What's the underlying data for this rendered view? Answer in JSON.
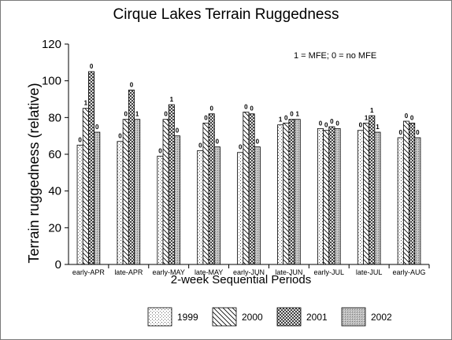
{
  "chart_data": {
    "type": "bar",
    "title": "Cirque Lakes Terrain Ruggedness",
    "xlabel": "2-week Sequential Periods",
    "ylabel": "Terrain ruggedness (relative)",
    "annotation": "1 = MFE; 0 = no MFE",
    "ylim": [
      0,
      120
    ],
    "yticks": [
      "0",
      "20",
      "40",
      "60",
      "80",
      "100",
      "120"
    ],
    "grid": false,
    "legend_position": "bottom",
    "categories": [
      "early-APR",
      "late-APR",
      "early-MAY",
      "late-MAY",
      "early-JUN",
      "late-JUN",
      "early-JUL",
      "late-JUL",
      "early-AUG"
    ],
    "series": [
      {
        "name": "1999",
        "pattern": "dots",
        "values": [
          65,
          67,
          59,
          62,
          61,
          76,
          74,
          73,
          69
        ],
        "labels": [
          "0",
          "0",
          "0",
          "0",
          "0",
          "1",
          "0",
          "0",
          "0"
        ]
      },
      {
        "name": "2000",
        "pattern": "hatch",
        "values": [
          85,
          79,
          79,
          77,
          83,
          77,
          73,
          77,
          78
        ],
        "labels": [
          "1",
          "0",
          "0",
          "0",
          "0",
          "0",
          "0",
          "1",
          "0"
        ]
      },
      {
        "name": "2001",
        "pattern": "crosshatch",
        "values": [
          105,
          95,
          87,
          82,
          82,
          79,
          75,
          81,
          77
        ],
        "labels": [
          "0",
          "0",
          "1",
          "0",
          "0",
          "0",
          "0",
          "1",
          "0"
        ]
      },
      {
        "name": "2002",
        "pattern": "mesh",
        "values": [
          72,
          79,
          70,
          64,
          64,
          79,
          74,
          72,
          69
        ],
        "labels": [
          "0",
          "1",
          "0",
          "0",
          "0",
          "1",
          "0",
          "1",
          "0"
        ]
      }
    ]
  }
}
